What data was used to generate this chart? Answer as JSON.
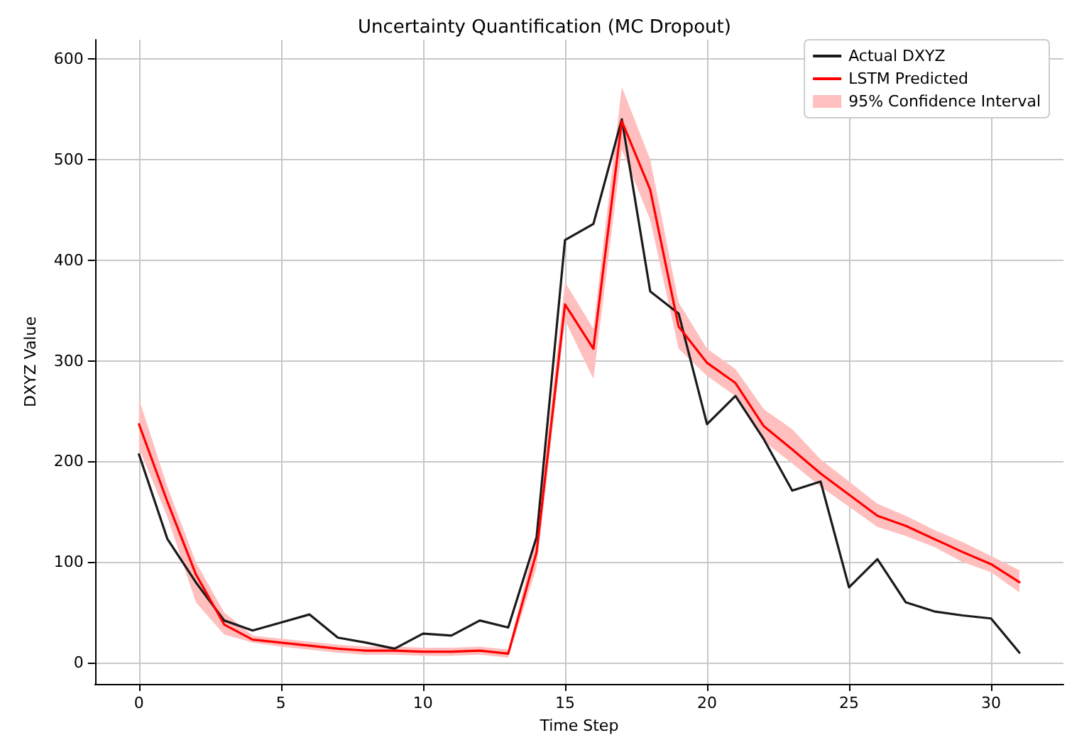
{
  "chart_data": {
    "type": "line",
    "title": "Uncertainty Quantification (MC Dropout)",
    "xlabel": "Time Step",
    "ylabel": "DXYZ Value",
    "x": [
      0,
      1,
      2,
      3,
      4,
      5,
      6,
      7,
      8,
      9,
      10,
      11,
      12,
      13,
      14,
      15,
      16,
      17,
      18,
      19,
      20,
      21,
      22,
      23,
      24,
      25,
      26,
      27,
      28,
      29,
      30,
      31
    ],
    "series": [
      {
        "name": "Actual DXYZ",
        "color": "#1a1a1a",
        "values": [
          207,
          123,
          80,
          42,
          32,
          40,
          48,
          25,
          20,
          14,
          29,
          27,
          42,
          35,
          125,
          420,
          436,
          540,
          369,
          347,
          237,
          265,
          222,
          171,
          180,
          75,
          103,
          60,
          51,
          47,
          44,
          10
        ]
      },
      {
        "name": "LSTM Predicted",
        "color": "#ff0000",
        "values": [
          237,
          160,
          88,
          38,
          23,
          20,
          17,
          14,
          12,
          12,
          11,
          11,
          12,
          9,
          110,
          356,
          312,
          538,
          470,
          334,
          298,
          278,
          235,
          212,
          188,
          167,
          146,
          136,
          123,
          110,
          98,
          80
        ]
      },
      {
        "name": "95% Confidence Interval",
        "color": "#ffbfbf",
        "values": [
          null,
          null,
          null,
          null,
          null,
          null,
          null,
          null,
          null,
          null,
          null,
          null,
          null,
          null,
          null,
          null,
          null,
          null,
          null,
          null,
          null,
          null,
          null,
          null,
          null,
          null,
          null,
          null,
          null,
          null,
          null,
          null
        ],
        "lower": [
          213,
          145,
          60,
          28,
          20,
          16,
          13,
          10,
          8,
          8,
          7,
          7,
          8,
          5,
          95,
          340,
          282,
          510,
          440,
          312,
          285,
          265,
          220,
          198,
          175,
          155,
          135,
          126,
          115,
          100,
          90,
          70
        ],
        "upper": [
          262,
          175,
          100,
          50,
          27,
          24,
          21,
          18,
          16,
          16,
          15,
          15,
          16,
          13,
          125,
          378,
          332,
          572,
          500,
          358,
          312,
          292,
          252,
          232,
          202,
          180,
          158,
          146,
          132,
          120,
          106,
          92
        ]
      }
    ],
    "xlim": [
      -1.55,
      32.55
    ],
    "xticks": [
      0,
      5,
      10,
      15,
      20,
      25,
      30
    ],
    "ylim": [
      -21,
      619
    ],
    "yticks": [
      0,
      100,
      200,
      300,
      400,
      500,
      600
    ],
    "grid": true,
    "legend": "top right",
    "marker": "none",
    "line_style": "solid"
  }
}
